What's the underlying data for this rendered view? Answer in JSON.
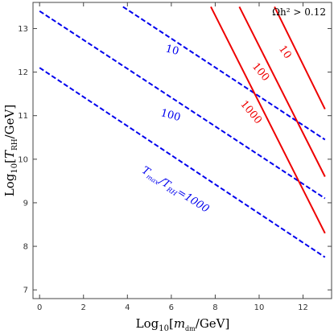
{
  "chart_data": {
    "type": "line",
    "xlabel": "Log10[mdm/GeV]",
    "ylabel": "Log10[TRH/GeV]",
    "xlim": [
      -0.3,
      13.3
    ],
    "ylim": [
      6.8,
      13.6
    ],
    "xticks": [
      "0",
      "2",
      "4",
      "6",
      "8",
      "10",
      "12"
    ],
    "yticks": [
      "7",
      "8",
      "9",
      "10",
      "11",
      "12",
      "13"
    ],
    "grid": false,
    "annotation": "Ωh² > 0.12",
    "colors": {
      "blue": "#0000ee",
      "red": "#ee0000"
    },
    "series": [
      {
        "label": "10",
        "color": "blue",
        "dash": true,
        "x": [
          3.8,
          13.0
        ],
        "y": [
          13.5,
          10.45
        ]
      },
      {
        "label": "100",
        "color": "blue",
        "dash": true,
        "x": [
          0.0,
          13.0
        ],
        "y": [
          13.4,
          9.1
        ]
      },
      {
        "label": "Tmax/TRH=1000",
        "color": "blue",
        "dash": true,
        "x": [
          0.0,
          13.0
        ],
        "y": [
          12.1,
          7.75
        ]
      },
      {
        "label": "10",
        "color": "red",
        "dash": false,
        "x": [
          9.1,
          13.0
        ],
        "y": [
          13.5,
          9.6
        ]
      },
      {
        "label": "100",
        "color": "red",
        "dash": false,
        "x": [
          7.8,
          13.0
        ],
        "y": [
          13.5,
          8.3
        ]
      },
      {
        "label": "1000",
        "color": "red",
        "dash": false,
        "x": [
          10.7,
          13.0
        ],
        "y": [
          13.5,
          11.15
        ]
      }
    ]
  }
}
